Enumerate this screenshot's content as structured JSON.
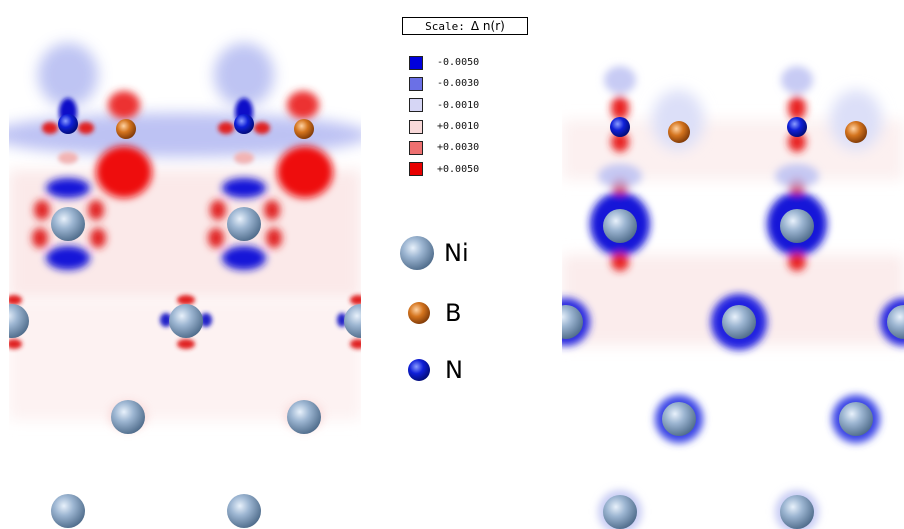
{
  "scale": {
    "label": "Scale:",
    "symbol": "Δ n(r)"
  },
  "legend": [
    {
      "value": "-0.0050",
      "color": "#0000dd"
    },
    {
      "value": "-0.0030",
      "color": "#6b70e6"
    },
    {
      "value": "-0.0010",
      "color": "#d6d6f5"
    },
    {
      "value": "+0.0010",
      "color": "#f8d8d8"
    },
    {
      "value": "+0.0030",
      "color": "#ee7070"
    },
    {
      "value": "+0.0050",
      "color": "#e80000"
    }
  ],
  "atoms": [
    {
      "label": "Ni",
      "color": "#8aa6c4",
      "icon": "ni-atom-icon"
    },
    {
      "label": "B",
      "color": "#d2691e",
      "icon": "b-atom-icon"
    },
    {
      "label": "N",
      "color": "#0a1ad0",
      "icon": "n-atom-icon"
    }
  ]
}
